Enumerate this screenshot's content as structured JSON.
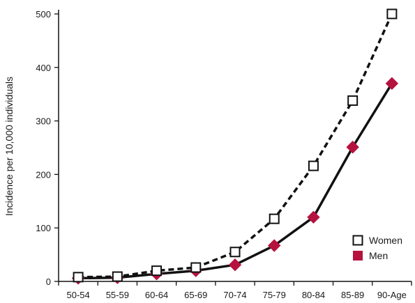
{
  "chart_data": {
    "type": "line",
    "title": "",
    "xlabel": "",
    "ylabel": "Incidence per 10,000 individuals",
    "ylim": [
      0,
      500
    ],
    "yticks": [
      0,
      100,
      200,
      300,
      400,
      500
    ],
    "grid": false,
    "legend_position": "bottom-right",
    "categories": [
      "50-54",
      "55-59",
      "60-64",
      "65-69",
      "70-74",
      "75-79",
      "80-84",
      "85-89",
      "90-Age"
    ],
    "series": [
      {
        "name": "Women",
        "line_style": "dashed",
        "marker": "open-square",
        "color": "#111111",
        "values": [
          8,
          9,
          20,
          26,
          55,
          117,
          216,
          338,
          500
        ]
      },
      {
        "name": "Men",
        "line_style": "solid",
        "marker": "filled-diamond",
        "color": "#b5123f",
        "values": [
          6,
          7,
          14,
          20,
          31,
          67,
          120,
          251,
          370
        ]
      }
    ]
  }
}
